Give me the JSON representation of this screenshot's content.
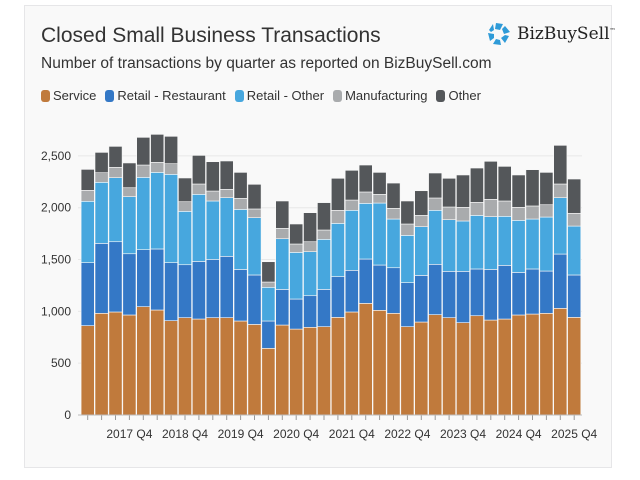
{
  "header": {
    "title": "Closed Small Business Transactions",
    "subtitle": "Number of transactions by quarter as reported on BizBuySell.com",
    "logo": "BizBuySell",
    "logo_tm": "™"
  },
  "chart_data": {
    "type": "bar",
    "stacked": true,
    "title": "Closed Small Business Transactions",
    "subtitle": "Number of transactions by quarter as reported on BizBuySell.com",
    "xlabel": "",
    "ylabel": "",
    "ylim": [
      0,
      2750
    ],
    "yticks": [
      0,
      500,
      1000,
      1500,
      2000,
      2500
    ],
    "grid": true,
    "legend": "top-left",
    "categories": [
      "2017 Q1",
      "2017 Q2",
      "2017 Q3",
      "2017 Q4",
      "2018 Q1",
      "2018 Q2",
      "2018 Q3",
      "2018 Q4",
      "2019 Q1",
      "2019 Q2",
      "2019 Q3",
      "2019 Q4",
      "2020 Q1",
      "2020 Q2",
      "2020 Q3",
      "2020 Q4",
      "2021 Q1",
      "2021 Q2",
      "2021 Q3",
      "2021 Q4",
      "2022 Q1",
      "2022 Q2",
      "2022 Q3",
      "2022 Q4",
      "2023 Q1",
      "2023 Q2",
      "2023 Q3",
      "2023 Q4",
      "2024 Q1",
      "2024 Q2",
      "2024 Q3",
      "2024 Q4",
      "2025 Q1",
      "2025 Q2",
      "2025 Q3",
      "2025 Q4"
    ],
    "xtick_labels": [
      "2017 Q4",
      "2018 Q4",
      "2019 Q4",
      "2020 Q4",
      "2021 Q4",
      "2022 Q4",
      "2023 Q4",
      "2024 Q4",
      "2025 Q4"
    ],
    "series": [
      {
        "name": "Service",
        "color": "#c07a3c",
        "values": [
          862,
          981,
          994,
          965,
          1045,
          1013,
          910,
          939,
          926,
          939,
          939,
          907,
          874,
          643,
          868,
          829,
          846,
          852,
          942,
          994,
          1077,
          1010,
          981,
          852,
          897,
          968,
          939,
          891,
          958,
          916,
          926,
          965,
          974,
          981,
          1029,
          942
        ]
      },
      {
        "name": "Retail - Restaurant",
        "color": "#3478c6",
        "values": [
          608,
          675,
          678,
          591,
          550,
          589,
          560,
          511,
          556,
          563,
          592,
          498,
          477,
          264,
          344,
          290,
          305,
          360,
          393,
          402,
          428,
          437,
          440,
          425,
          450,
          486,
          447,
          495,
          451,
          489,
          518,
          411,
          435,
          408,
          524,
          409
        ]
      },
      {
        "name": "Retail - Other",
        "color": "#47a7de",
        "values": [
          592,
          589,
          618,
          551,
          698,
          739,
          852,
          515,
          647,
          563,
          566,
          579,
          553,
          325,
          489,
          450,
          425,
          483,
          514,
          579,
          537,
          598,
          470,
          456,
          470,
          521,
          499,
          486,
          517,
          509,
          473,
          502,
          482,
          521,
          544,
          472
        ]
      },
      {
        "name": "Manufacturing",
        "color": "#a9abad",
        "values": [
          106,
          93,
          100,
          86,
          119,
          97,
          103,
          93,
          100,
          96,
          80,
          106,
          84,
          51,
          100,
          81,
          96,
          90,
          126,
          99,
          110,
          84,
          103,
          110,
          109,
          119,
          122,
          132,
          126,
          167,
          148,
          126,
          126,
          119,
          132,
          123
        ]
      },
      {
        "name": "Other",
        "color": "#54575a",
        "values": [
          202,
          196,
          202,
          239,
          267,
          270,
          264,
          229,
          276,
          283,
          274,
          251,
          238,
          196,
          264,
          193,
          280,
          264,
          309,
          287,
          260,
          212,
          244,
          222,
          238,
          241,
          277,
          312,
          331,
          367,
          334,
          312,
          350,
          312,
          373,
          331
        ]
      }
    ]
  }
}
